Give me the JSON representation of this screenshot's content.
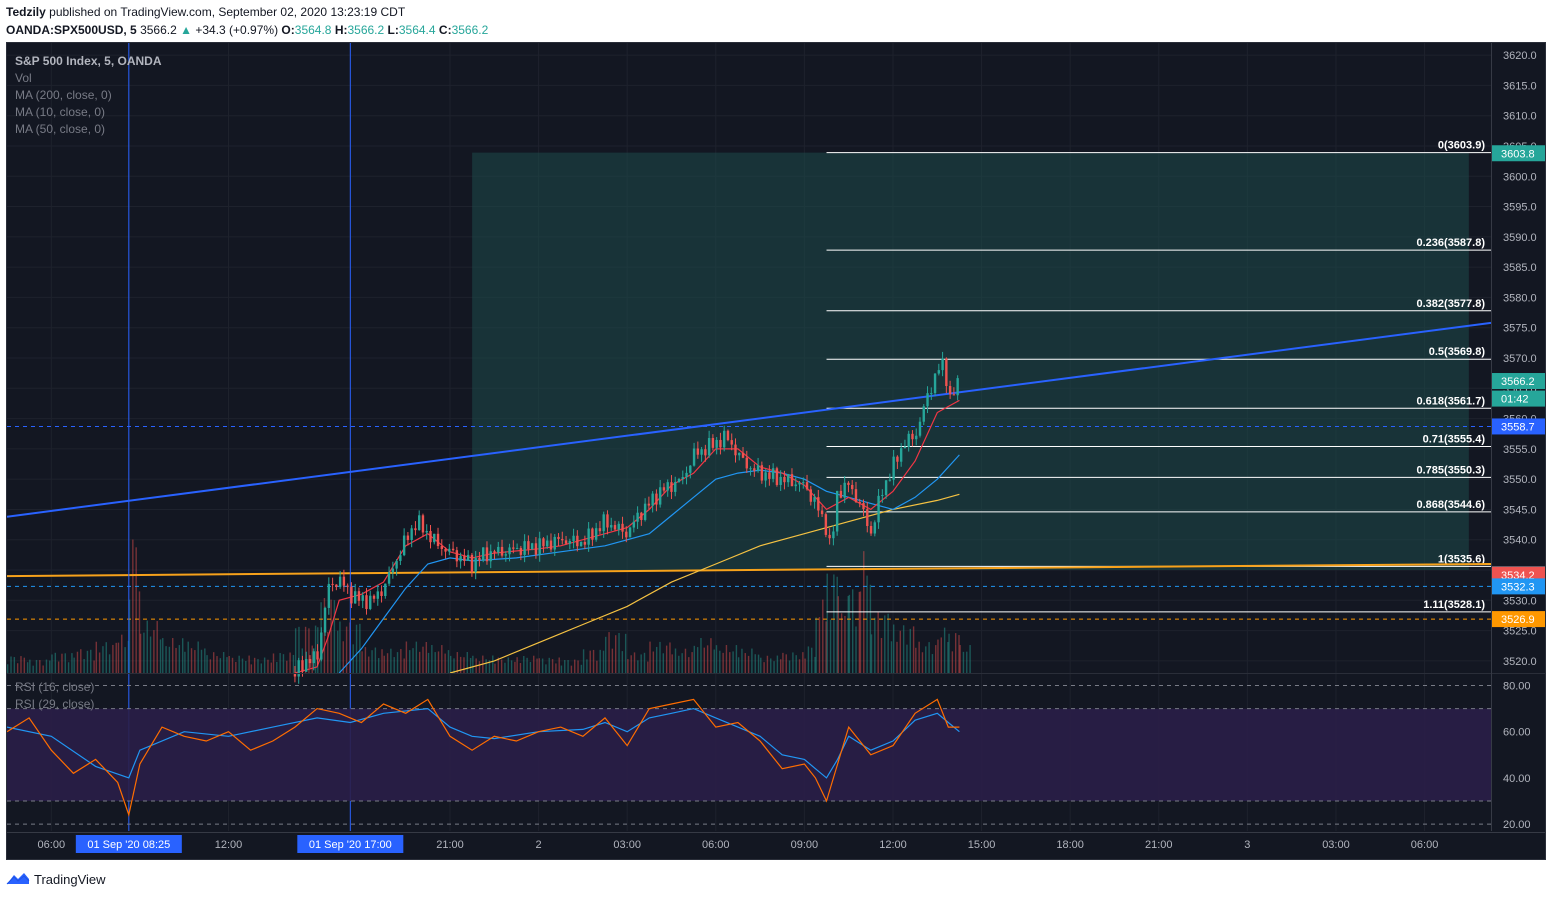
{
  "header": {
    "publisher": "Tedzily",
    "published_text": "published on TradingView.com, September 02, 2020 13:23:19 CDT",
    "symbol": "OANDA:SPX500USD, 5",
    "last": "3566.2",
    "change": "+34.3 (+0.97%)",
    "o_label": "O:",
    "o": "3564.8",
    "h_label": "H:",
    "h": "3566.2",
    "l_label": "L:",
    "l": "3564.4",
    "c_label": "C:",
    "c": "3566.2"
  },
  "legend": {
    "title": "S&P 500 Index, 5, OANDA",
    "vol": "Vol",
    "ma200": "MA (200, close, 0)",
    "ma10": "MA (10, close, 0)",
    "ma50": "MA (50, close, 0)",
    "rsi16": "RSI (16, close)",
    "rsi29": "RSI (29, close)"
  },
  "footer": {
    "brand": "TradingView"
  },
  "colors": {
    "background": "#131722",
    "up": "#26a69a",
    "down": "#ef5350",
    "trendline": "#2962ff",
    "support": "#f7a21b",
    "ma10": "#f23645",
    "ma50": "#2196f3",
    "ma200": "#f5c242",
    "rsi16": "#2196f3",
    "rsi29": "#ff6d00",
    "box": "#1e4a4a",
    "rsi_band": "#2a1e48"
  },
  "chart_data": {
    "type": "line",
    "price_axis": {
      "ticks": [
        "3620.0",
        "3615.0",
        "3610.0",
        "3605.0",
        "3600.0",
        "3595.0",
        "3590.0",
        "3585.0",
        "3580.0",
        "3575.0",
        "3570.0",
        "3565.0",
        "3560.0",
        "3555.0",
        "3550.0",
        "3545.0",
        "3540.0",
        "3535.0",
        "3530.0",
        "3525.0",
        "3520.0"
      ],
      "range": [
        3518,
        3622
      ]
    },
    "rsi_axis": {
      "ticks": [
        "80.00",
        "60.00",
        "40.00",
        "20.00"
      ],
      "range": [
        17,
        85
      ],
      "upper": 70,
      "lower": 30
    },
    "time_axis": {
      "labels": [
        "06:00",
        "01 Sep '20   08:25",
        "12:00",
        "01 Sep '20   17:00",
        "21:00",
        "2",
        "03:00",
        "06:00",
        "09:00",
        "12:00",
        "15:00",
        "18:00",
        "21:00",
        "3",
        "03:00",
        "06:00"
      ]
    },
    "price_badges": [
      {
        "label": "3603.8",
        "value": 3603.8,
        "color": "#26a69a"
      },
      {
        "label": "3566.2",
        "value": 3566.2,
        "color": "#26a69a"
      },
      {
        "label": "01:42",
        "value": 3563.3,
        "color": "#26a69a"
      },
      {
        "label": "3558.7",
        "value": 3558.7,
        "color": "#2962ff"
      },
      {
        "label": "3534.3",
        "value": 3534.3,
        "color": "#787b86"
      },
      {
        "label": "3534.2",
        "value": 3534.2,
        "color": "#ef5350"
      },
      {
        "label": "3532.3",
        "value": 3532.3,
        "color": "#2196f3"
      },
      {
        "label": "3526.9",
        "value": 3526.9,
        "color": "#ff9800"
      }
    ],
    "fib_levels": [
      {
        "label": "0(3603.9)",
        "value": 3603.9
      },
      {
        "label": "0.236(3587.8)",
        "value": 3587.8
      },
      {
        "label": "0.382(3577.8)",
        "value": 3577.8
      },
      {
        "label": "0.5(3569.8)",
        "value": 3569.8
      },
      {
        "label": "0.618(3561.7)",
        "value": 3561.7
      },
      {
        "label": "0.71(3555.4)",
        "value": 3555.4
      },
      {
        "label": "0.785(3550.3)",
        "value": 3550.3
      },
      {
        "label": "0.868(3544.6)",
        "value": 3544.6
      },
      {
        "label": "1(3535.6)",
        "value": 3535.6
      },
      {
        "label": "1.11(3528.1)",
        "value": 3528.1
      }
    ],
    "position_box": {
      "top": 3603.9,
      "bottom": 3535.0,
      "t_start": 21,
      "t_end": 66
    },
    "fib_start_t": 37,
    "trendline": {
      "p1": [
        0,
        3543.8
      ],
      "p2": [
        67,
        3575.8
      ]
    },
    "support_line": {
      "p1": [
        0,
        3534.0
      ],
      "p2": [
        67,
        3536.0
      ]
    },
    "dashed_lines": [
      {
        "value": 3558.7,
        "color": "#2962ff"
      },
      {
        "value": 3532.3,
        "color": "#2196f3"
      },
      {
        "value": 3526.9,
        "color": "#ff9800"
      }
    ],
    "vertical_markers": [
      5.5,
      15.5
    ],
    "price_path": [
      [
        13,
        3518
      ],
      [
        13.5,
        3520
      ],
      [
        14,
        3520.5
      ],
      [
        14.5,
        3532
      ],
      [
        15,
        3533.5
      ],
      [
        15.5,
        3531
      ],
      [
        16,
        3530
      ],
      [
        16.5,
        3530
      ],
      [
        17,
        3532
      ],
      [
        17.5,
        3536
      ],
      [
        18,
        3540
      ],
      [
        18.5,
        3543
      ],
      [
        19,
        3541
      ],
      [
        19.5,
        3539
      ],
      [
        20,
        3538
      ],
      [
        20.5,
        3537
      ],
      [
        21,
        3536
      ],
      [
        21.5,
        3537.5
      ],
      [
        22,
        3538
      ],
      [
        22.5,
        3538
      ],
      [
        23,
        3538.5
      ],
      [
        24,
        3539
      ],
      [
        25,
        3540
      ],
      [
        26,
        3539.5
      ],
      [
        27,
        3543
      ],
      [
        27.5,
        3542
      ],
      [
        28,
        3541
      ],
      [
        28.5,
        3544
      ],
      [
        29,
        3546
      ],
      [
        29.5,
        3548
      ],
      [
        30,
        3549
      ],
      [
        30.5,
        3550
      ],
      [
        31,
        3554
      ],
      [
        31.5,
        3555
      ],
      [
        32,
        3556
      ],
      [
        32.5,
        3557
      ],
      [
        33,
        3554
      ],
      [
        33.5,
        3552
      ],
      [
        34,
        3551
      ],
      [
        35,
        3550
      ],
      [
        36,
        3549
      ],
      [
        36.5,
        3546
      ],
      [
        37,
        3542
      ],
      [
        37.2,
        3538
      ],
      [
        37.5,
        3548
      ],
      [
        38,
        3549
      ],
      [
        38.5,
        3546
      ],
      [
        39,
        3541
      ],
      [
        39.5,
        3548
      ],
      [
        40,
        3552
      ],
      [
        40.5,
        3556
      ],
      [
        41,
        3557
      ],
      [
        41.5,
        3563
      ],
      [
        42,
        3568
      ],
      [
        42.3,
        3569
      ],
      [
        42.6,
        3563
      ],
      [
        43,
        3566.2
      ]
    ],
    "ma10": [
      [
        13,
        3518
      ],
      [
        14,
        3519
      ],
      [
        14.5,
        3524
      ],
      [
        15,
        3530
      ],
      [
        16,
        3531
      ],
      [
        17,
        3533
      ],
      [
        18,
        3539
      ],
      [
        19,
        3541
      ],
      [
        20,
        3538
      ],
      [
        21,
        3537
      ],
      [
        22,
        3537.8
      ],
      [
        24,
        3538.5
      ],
      [
        25,
        3539
      ],
      [
        26,
        3540
      ],
      [
        27,
        3541
      ],
      [
        28,
        3542
      ],
      [
        29,
        3545
      ],
      [
        30,
        3549
      ],
      [
        31,
        3551
      ],
      [
        32,
        3555
      ],
      [
        33,
        3555
      ],
      [
        34,
        3552
      ],
      [
        35,
        3551
      ],
      [
        36,
        3549
      ],
      [
        37,
        3545
      ],
      [
        38,
        3547
      ],
      [
        39,
        3545
      ],
      [
        40,
        3548
      ],
      [
        41,
        3553
      ],
      [
        42,
        3561
      ],
      [
        43,
        3563
      ]
    ],
    "ma50": [
      [
        15,
        3518
      ],
      [
        16,
        3522
      ],
      [
        17,
        3527
      ],
      [
        18,
        3532
      ],
      [
        19,
        3536
      ],
      [
        20,
        3537
      ],
      [
        21,
        3536.5
      ],
      [
        23,
        3537
      ],
      [
        25,
        3538
      ],
      [
        27,
        3539
      ],
      [
        29,
        3541
      ],
      [
        30,
        3544
      ],
      [
        31,
        3547
      ],
      [
        32,
        3550
      ],
      [
        33,
        3551
      ],
      [
        34,
        3551.5
      ],
      [
        35,
        3551
      ],
      [
        36,
        3550
      ],
      [
        37,
        3548
      ],
      [
        38,
        3547
      ],
      [
        39,
        3546
      ],
      [
        40,
        3545
      ],
      [
        41,
        3547
      ],
      [
        42,
        3550
      ],
      [
        43,
        3554
      ]
    ],
    "ma200": [
      [
        20,
        3518
      ],
      [
        22,
        3520
      ],
      [
        24,
        3523
      ],
      [
        26,
        3526
      ],
      [
        28,
        3529
      ],
      [
        30,
        3533
      ],
      [
        32,
        3536
      ],
      [
        34,
        3539
      ],
      [
        36,
        3541
      ],
      [
        38,
        3543
      ],
      [
        40,
        3545
      ],
      [
        42,
        3546.5
      ],
      [
        43,
        3547.5
      ]
    ],
    "rsi16": [
      [
        0,
        62
      ],
      [
        2,
        58
      ],
      [
        4,
        45
      ],
      [
        5.5,
        40
      ],
      [
        6,
        52
      ],
      [
        8,
        60
      ],
      [
        10,
        58
      ],
      [
        12,
        62
      ],
      [
        14,
        66
      ],
      [
        15.5,
        64
      ],
      [
        17,
        68
      ],
      [
        19,
        70
      ],
      [
        20,
        62
      ],
      [
        21,
        58
      ],
      [
        22,
        57
      ],
      [
        24,
        60
      ],
      [
        26,
        61
      ],
      [
        27,
        64
      ],
      [
        28,
        60
      ],
      [
        29,
        66
      ],
      [
        30,
        68
      ],
      [
        31,
        70
      ],
      [
        32,
        66
      ],
      [
        33,
        62
      ],
      [
        34,
        58
      ],
      [
        35,
        50
      ],
      [
        36,
        48
      ],
      [
        36.5,
        44
      ],
      [
        37,
        40
      ],
      [
        37.5,
        48
      ],
      [
        38,
        58
      ],
      [
        39,
        52
      ],
      [
        40,
        56
      ],
      [
        41,
        65
      ],
      [
        42,
        68
      ],
      [
        42.5,
        64
      ],
      [
        43,
        60
      ]
    ],
    "rsi29": [
      [
        0,
        60
      ],
      [
        1,
        66
      ],
      [
        2,
        52
      ],
      [
        3,
        42
      ],
      [
        4,
        48
      ],
      [
        5,
        38
      ],
      [
        5.5,
        24
      ],
      [
        6,
        46
      ],
      [
        7,
        62
      ],
      [
        8,
        58
      ],
      [
        9,
        56
      ],
      [
        10,
        60
      ],
      [
        11,
        52
      ],
      [
        12,
        56
      ],
      [
        13,
        62
      ],
      [
        14,
        70
      ],
      [
        15,
        68
      ],
      [
        16,
        64
      ],
      [
        17,
        72
      ],
      [
        18,
        68
      ],
      [
        19,
        74
      ],
      [
        20,
        58
      ],
      [
        21,
        52
      ],
      [
        22,
        58
      ],
      [
        23,
        56
      ],
      [
        24,
        60
      ],
      [
        25,
        62
      ],
      [
        26,
        58
      ],
      [
        27,
        66
      ],
      [
        28,
        54
      ],
      [
        29,
        70
      ],
      [
        30,
        72
      ],
      [
        31,
        74
      ],
      [
        32,
        62
      ],
      [
        33,
        64
      ],
      [
        34,
        56
      ],
      [
        35,
        44
      ],
      [
        36,
        46
      ],
      [
        36.5,
        40
      ],
      [
        37,
        30
      ],
      [
        37.5,
        46
      ],
      [
        38,
        62
      ],
      [
        39,
        50
      ],
      [
        40,
        54
      ],
      [
        41,
        68
      ],
      [
        42,
        74
      ],
      [
        42.5,
        62
      ],
      [
        43,
        62
      ]
    ],
    "volume": [
      [
        0,
        10
      ],
      [
        1,
        8
      ],
      [
        2,
        12
      ],
      [
        3,
        14
      ],
      [
        4,
        18
      ],
      [
        5,
        22
      ],
      [
        5.5,
        80
      ],
      [
        6,
        30
      ],
      [
        7,
        20
      ],
      [
        8,
        18
      ],
      [
        9,
        12
      ],
      [
        10,
        10
      ],
      [
        11,
        9
      ],
      [
        12,
        12
      ],
      [
        13,
        28
      ],
      [
        14,
        45
      ],
      [
        15,
        30
      ],
      [
        16,
        15
      ],
      [
        17,
        14
      ],
      [
        18,
        18
      ],
      [
        19,
        16
      ],
      [
        20,
        12
      ],
      [
        21,
        10
      ],
      [
        22,
        9
      ],
      [
        23,
        10
      ],
      [
        24,
        9
      ],
      [
        25,
        8
      ],
      [
        26,
        14
      ],
      [
        27,
        24
      ],
      [
        28,
        12
      ],
      [
        29,
        18
      ],
      [
        30,
        14
      ],
      [
        31,
        20
      ],
      [
        32,
        16
      ],
      [
        33,
        14
      ],
      [
        34,
        10
      ],
      [
        35,
        12
      ],
      [
        36,
        16
      ],
      [
        36.5,
        42
      ],
      [
        37,
        60
      ],
      [
        37.5,
        44
      ],
      [
        38,
        50
      ],
      [
        38.5,
        70
      ],
      [
        39,
        36
      ],
      [
        40,
        28
      ],
      [
        41,
        18
      ],
      [
        42,
        26
      ],
      [
        42.5,
        24
      ],
      [
        43,
        16
      ]
    ]
  }
}
